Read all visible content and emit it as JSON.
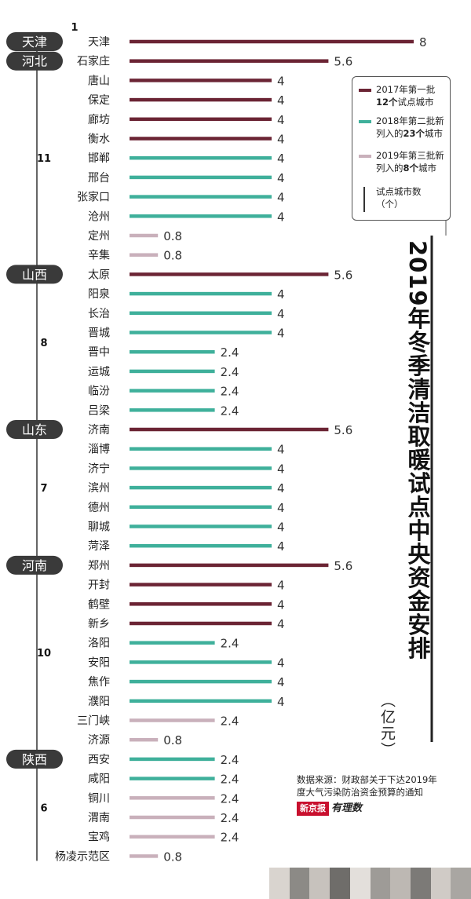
{
  "chart_data": {
    "type": "bar",
    "orientation": "horizontal",
    "title": "2019年冬季清洁取暖试点中央资金安排",
    "unit": "（亿元）",
    "xlim": [
      0,
      8
    ],
    "grid": false,
    "legend_placement": "top-right",
    "colors": {
      "2017": "#6b2434",
      "2018": "#3fb09b",
      "2019": "#c9b0bb"
    },
    "legend": [
      {
        "key": "2017",
        "text_pre": "2017年第一批\n",
        "bold": "12个",
        "text_post": "试点城市"
      },
      {
        "key": "2018",
        "text_pre": "2018年第二批新\n列入的",
        "bold": "23个",
        "text_post": "城市"
      },
      {
        "key": "2019",
        "text_pre": "2019年第三批新\n列入的",
        "bold": "8个",
        "text_post": "城市"
      },
      {
        "key": "count",
        "text_pre": "试点城市数\n（个）",
        "bold": "",
        "text_post": ""
      }
    ],
    "groups": [
      {
        "province": "天津",
        "count": "1",
        "cities": [
          {
            "name": "天津",
            "value": 8,
            "batch": "2017"
          }
        ]
      },
      {
        "province": "河北",
        "count": "11",
        "cities": [
          {
            "name": "石家庄",
            "value": 5.6,
            "batch": "2017"
          },
          {
            "name": "唐山",
            "value": 4,
            "batch": "2017"
          },
          {
            "name": "保定",
            "value": 4,
            "batch": "2017"
          },
          {
            "name": "廊坊",
            "value": 4,
            "batch": "2017"
          },
          {
            "name": "衡水",
            "value": 4,
            "batch": "2017"
          },
          {
            "name": "邯郸",
            "value": 4,
            "batch": "2018"
          },
          {
            "name": "邢台",
            "value": 4,
            "batch": "2018"
          },
          {
            "name": "张家口",
            "value": 4,
            "batch": "2018"
          },
          {
            "name": "沧州",
            "value": 4,
            "batch": "2018"
          },
          {
            "name": "定州",
            "value": 0.8,
            "batch": "2019"
          },
          {
            "name": "辛集",
            "value": 0.8,
            "batch": "2019"
          }
        ]
      },
      {
        "province": "山西",
        "count": "8",
        "cities": [
          {
            "name": "太原",
            "value": 5.6,
            "batch": "2017"
          },
          {
            "name": "阳泉",
            "value": 4,
            "batch": "2018"
          },
          {
            "name": "长治",
            "value": 4,
            "batch": "2018"
          },
          {
            "name": "晋城",
            "value": 4,
            "batch": "2018"
          },
          {
            "name": "晋中",
            "value": 2.4,
            "batch": "2018"
          },
          {
            "name": "运城",
            "value": 2.4,
            "batch": "2018"
          },
          {
            "name": "临汾",
            "value": 2.4,
            "batch": "2018"
          },
          {
            "name": "吕梁",
            "value": 2.4,
            "batch": "2018"
          }
        ]
      },
      {
        "province": "山东",
        "count": "7",
        "cities": [
          {
            "name": "济南",
            "value": 5.6,
            "batch": "2017"
          },
          {
            "name": "淄博",
            "value": 4,
            "batch": "2018"
          },
          {
            "name": "济宁",
            "value": 4,
            "batch": "2018"
          },
          {
            "name": "滨州",
            "value": 4,
            "batch": "2018"
          },
          {
            "name": "德州",
            "value": 4,
            "batch": "2018"
          },
          {
            "name": "聊城",
            "value": 4,
            "batch": "2018"
          },
          {
            "name": "菏泽",
            "value": 4,
            "batch": "2018"
          }
        ]
      },
      {
        "province": "河南",
        "count": "10",
        "cities": [
          {
            "name": "郑州",
            "value": 5.6,
            "batch": "2017"
          },
          {
            "name": "开封",
            "value": 4,
            "batch": "2017"
          },
          {
            "name": "鹤壁",
            "value": 4,
            "batch": "2017"
          },
          {
            "name": "新乡",
            "value": 4,
            "batch": "2017"
          },
          {
            "name": "洛阳",
            "value": 2.4,
            "batch": "2018"
          },
          {
            "name": "安阳",
            "value": 4,
            "batch": "2018"
          },
          {
            "name": "焦作",
            "value": 4,
            "batch": "2018"
          },
          {
            "name": "濮阳",
            "value": 4,
            "batch": "2018"
          },
          {
            "name": "三门峡",
            "value": 2.4,
            "batch": "2019"
          },
          {
            "name": "济源",
            "value": 0.8,
            "batch": "2019"
          }
        ]
      },
      {
        "province": "陕西",
        "count": "6",
        "cities": [
          {
            "name": "西安",
            "value": 2.4,
            "batch": "2018"
          },
          {
            "name": "咸阳",
            "value": 2.4,
            "batch": "2018"
          },
          {
            "name": "铜川",
            "value": 2.4,
            "batch": "2019"
          },
          {
            "name": "渭南",
            "value": 2.4,
            "batch": "2019"
          },
          {
            "name": "宝鸡",
            "value": 2.4,
            "batch": "2019"
          },
          {
            "name": "杨凌示范区",
            "value": 0.8,
            "batch": "2019"
          }
        ]
      }
    ]
  },
  "source": "数据来源：财政部关于下达2019年\n度大气污染防治资金预算的通知",
  "brand": {
    "logo": "新京报",
    "logo2": "有理数"
  }
}
